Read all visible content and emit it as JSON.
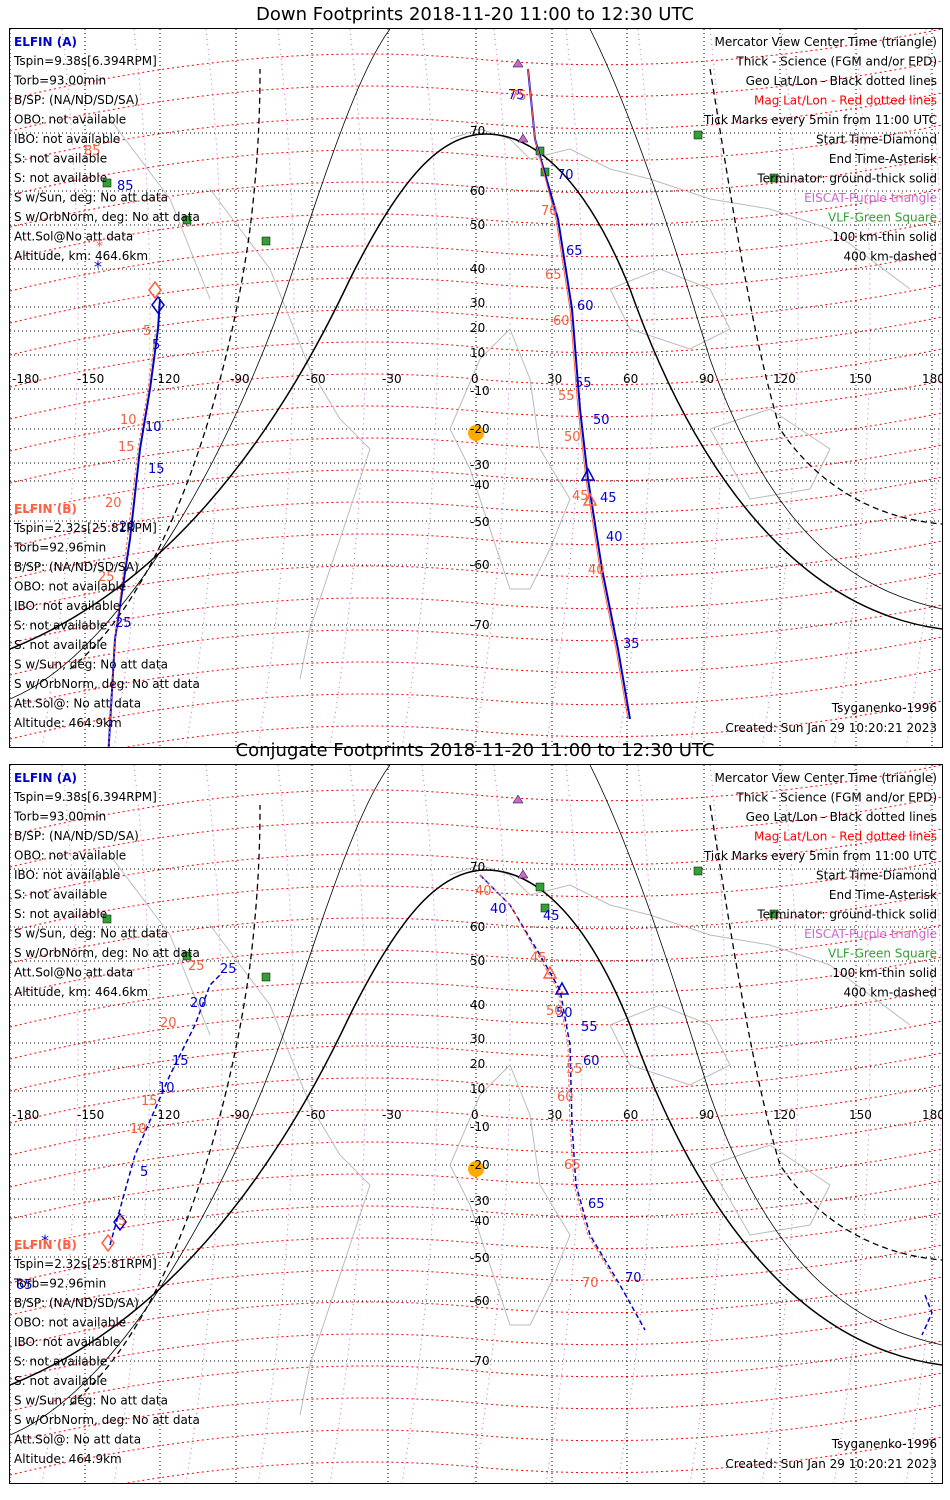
{
  "colors": {
    "mag": "#ff0000",
    "geo": "#000000",
    "elfin_a": "#0000cc",
    "elfin_b": "#ff6040",
    "ticks_red": "#f06040",
    "ticks_blue": "#0000cc",
    "eiscat": "#cc66cc",
    "vlf": "#33a033",
    "sun": "#ffaa00",
    "coast": "#bbbbbb"
  },
  "shared": {
    "a_title": "ELFIN (A)",
    "a_info": [
      "Tspin=9.38s[6.394RPM]",
      "Torb=93.00min",
      "B/SP: (NA/ND/SD/SA)",
      "OBO: not available",
      "IBO: not available",
      "S: not available",
      "S: not available",
      "S w/Sun, deg: No att data",
      "S w/OrbNorm, deg: No att data",
      "Att.Sol@No att data",
      "Altitude, km: 464.6km"
    ],
    "b_title": "ELFIN (B)",
    "b_info": [
      "Tspin=2.32s[25.81RPM]",
      "Torb=92.96min",
      "B/SP: (NA/ND/SD/SA)",
      "OBO: not available",
      "IBO: not available",
      "S: not available",
      "S: not available",
      "S w/Sun, deg: No att data",
      "S w/OrbNorm, deg: No att data",
      "Att.Sol@: No att data",
      "Altitude: 464.9km"
    ],
    "legend": [
      {
        "text": "Mercator View Center Time (triangle)",
        "color": "#000000"
      },
      {
        "text": "Thick - Science (FGM and/or EPD)",
        "color": "#000000"
      },
      {
        "text": "Geo Lat/Lon - Black dotted lines",
        "color": "#000000"
      },
      {
        "text": "Mag Lat/Lon - Red dotted lines",
        "color": "#ff0000"
      },
      {
        "text": "Tick Marks every 5min from 11:00 UTC",
        "color": "#000000"
      },
      {
        "text": "Start Time-Diamond",
        "color": "#000000"
      },
      {
        "text": "End Time-Asterisk",
        "color": "#000000"
      },
      {
        "text": "Terminator: ground-thick solid",
        "color": "#000000"
      },
      {
        "text": "EISCAT-Purple triangle",
        "color": "#cc66cc"
      },
      {
        "text": "VLF-Green Square",
        "color": "#33a033"
      },
      {
        "text": "100 km-thin solid",
        "color": "#000000"
      },
      {
        "text": "400 km-dashed",
        "color": "#000000"
      }
    ],
    "model": "Tsyganenko-1996",
    "created": "Created: Sun Jan 29 10:20:21 2023",
    "lon_labels": [
      "-180",
      "-150",
      "-120",
      "-90",
      "-60",
      "-30",
      "0",
      "30",
      "60",
      "90",
      "120",
      "150",
      "180"
    ],
    "lat_labels": [
      "70",
      "60",
      "50",
      "40",
      "30",
      "20",
      "10",
      "-10",
      "-20",
      "-30",
      "-40",
      "-50",
      "-60",
      "-70"
    ]
  },
  "panels": [
    {
      "title": "Down Footprints 2018-11-20 11:00 to 12:30 UTC",
      "ticks_a": [
        "75",
        "70",
        "65",
        "60",
        "55",
        "50",
        "45",
        "40",
        "35",
        "85",
        "5",
        "10",
        "15",
        "20",
        "25"
      ],
      "ticks_b": [
        "75",
        "70",
        "65",
        "60",
        "55",
        "50",
        "45",
        "40",
        "85",
        "5",
        "10",
        "15",
        "20",
        "25"
      ]
    },
    {
      "title": "Conjugate Footprints 2018-11-20 11:00 to 12:30 UTC",
      "ticks_a": [
        "40",
        "45",
        "50",
        "55",
        "60",
        "65",
        "70",
        "25",
        "20",
        "15",
        "10",
        "5",
        "65"
      ],
      "ticks_b": [
        "40",
        "45",
        "50",
        "55",
        "60",
        "65",
        "70",
        "25",
        "20",
        "15",
        "10",
        "5"
      ]
    }
  ]
}
